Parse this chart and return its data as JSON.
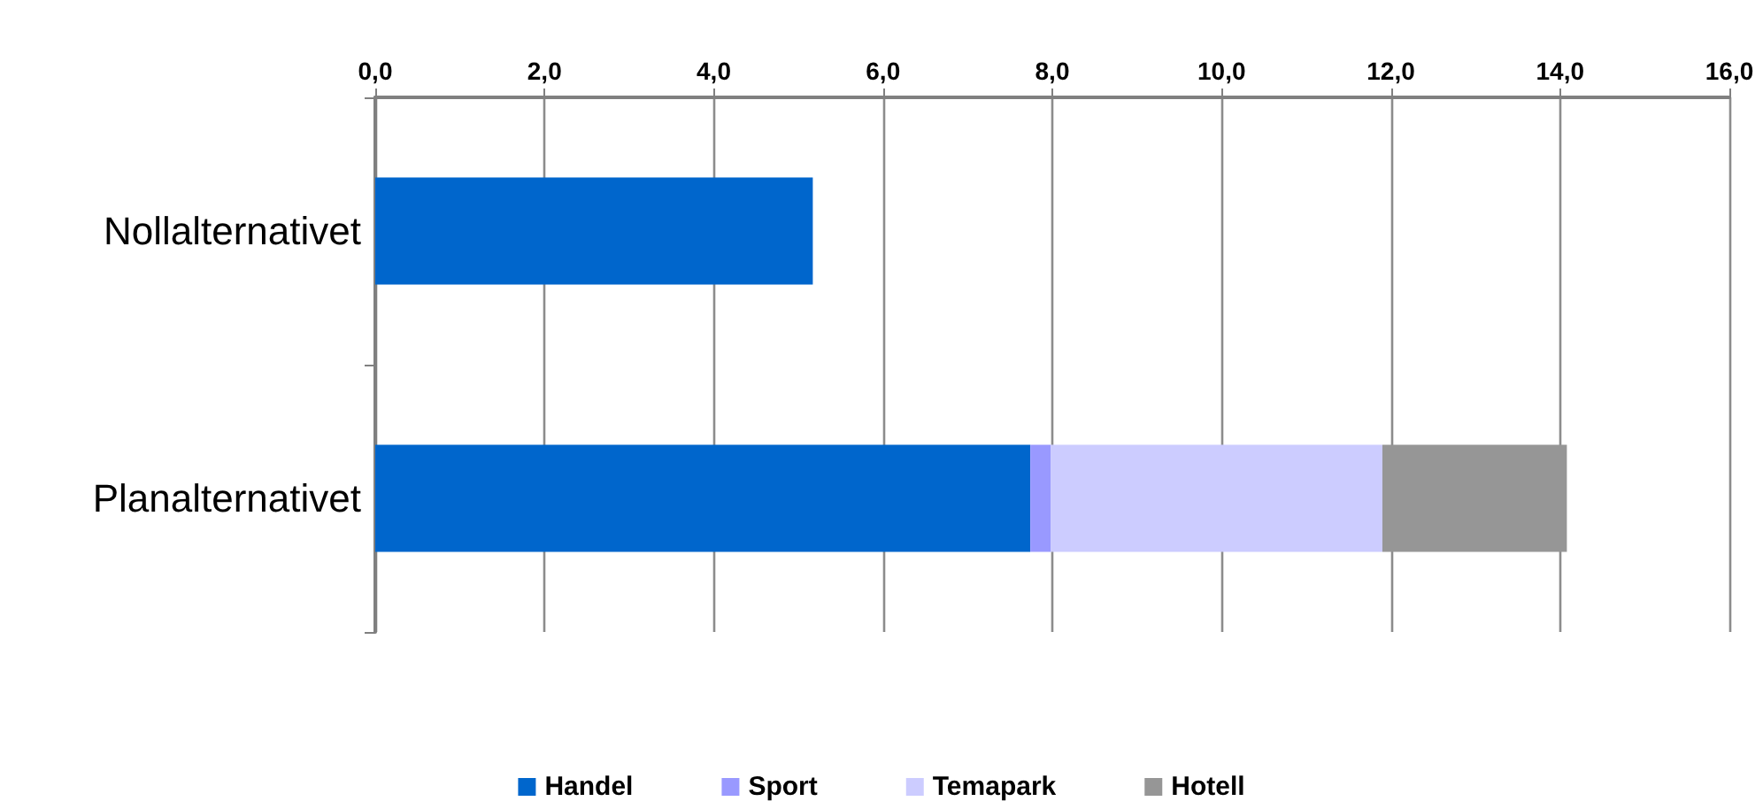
{
  "chart_data": {
    "type": "bar",
    "orientation": "horizontal",
    "stacked": true,
    "categories": [
      "Nollalternativet",
      "Planalternativet"
    ],
    "series": [
      {
        "name": "Handel",
        "color": "#0066cc",
        "values": [
          5.17,
          7.74
        ]
      },
      {
        "name": "Sport",
        "color": "#9999ff",
        "values": [
          null,
          0.24
        ]
      },
      {
        "name": "Temapark",
        "color": "#ccccff",
        "values": [
          null,
          3.92
        ]
      },
      {
        "name": "Hotell",
        "color": "#969696",
        "values": [
          null,
          2.18
        ]
      }
    ],
    "xlim": [
      0,
      16
    ],
    "xticks": [
      {
        "value": 0,
        "label": "0,0"
      },
      {
        "value": 2,
        "label": "2,0"
      },
      {
        "value": 4,
        "label": "4,0"
      },
      {
        "value": 6,
        "label": "6,0"
      },
      {
        "value": 8,
        "label": "8,0"
      },
      {
        "value": 10,
        "label": "10,0"
      },
      {
        "value": 12,
        "label": "12,0"
      },
      {
        "value": 14,
        "label": "14,0"
      },
      {
        "value": 16,
        "label": "16,0"
      }
    ],
    "grid": "x",
    "legend": "bottom"
  }
}
